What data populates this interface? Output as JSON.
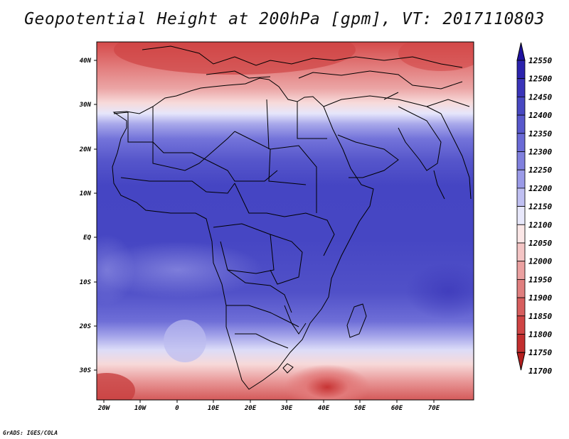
{
  "title": "Geopotential Height at 200hPa [gpm], VT: 2017110803",
  "footer": "GrADS: IGES/COLA",
  "map": {
    "lat_ticks": [
      "40N",
      "30N",
      "20N",
      "10N",
      "EQ",
      "10S",
      "20S",
      "30S"
    ],
    "lon_ticks": [
      "20W",
      "10W",
      "0",
      "10E",
      "20E",
      "30E",
      "40E",
      "50E",
      "60E",
      "70E"
    ]
  },
  "colorbar": {
    "labels": [
      "12550",
      "12500",
      "12450",
      "12400",
      "12350",
      "12300",
      "12250",
      "12200",
      "12150",
      "12100",
      "12050",
      "12000",
      "11950",
      "11900",
      "11850",
      "11800",
      "11750",
      "11700"
    ],
    "colors": [
      "#1f12a0",
      "#2b23ad",
      "#3a34b9",
      "#4848c2",
      "#5858cc",
      "#6a6ad6",
      "#8080de",
      "#9b9be8",
      "#c0c0f2",
      "#e8e8fb",
      "#fbe7e7",
      "#f4c5c5",
      "#eba1a1",
      "#e07f7f",
      "#d75e5e",
      "#cf4444",
      "#c22f2f",
      "#b51f1f"
    ]
  }
}
